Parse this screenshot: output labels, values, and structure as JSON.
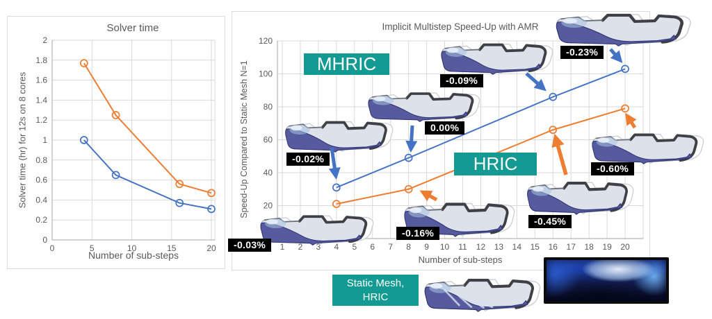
{
  "figure": {
    "background": "#FFFFFF"
  },
  "colors": {
    "mhric_blue": "#4472C4",
    "hric_orange": "#ED7D31",
    "teal_label_bg": "#139B93",
    "annotation_bg": "#000000",
    "annotation_fg": "#FFFFFF",
    "grid": "#D9D9D9",
    "axis": "#A6A6A6",
    "axis_text": "#595959"
  },
  "labels": {
    "mhric": "MHRIC",
    "hric": "HRIC",
    "static_mesh_line1": "Static Mesh,",
    "static_mesh_line2": "HRIC"
  },
  "chart_data": [
    {
      "type": "line",
      "title": "Solver time",
      "xlabel": "Number of sub-steps",
      "ylabel": "Solver time (hr) for 12s on 8 cores",
      "x": [
        4,
        8,
        16,
        20
      ],
      "series": [
        {
          "name": "MHRIC",
          "color": "#4472C4",
          "values": [
            1.0,
            0.65,
            0.37,
            0.31
          ]
        },
        {
          "name": "HRIC",
          "color": "#ED7D31",
          "values": [
            1.77,
            1.25,
            0.56,
            0.47
          ]
        }
      ],
      "xlim": [
        0,
        20
      ],
      "ylim": [
        0,
        2
      ],
      "x_ticks": [
        0,
        5,
        10,
        15,
        20
      ],
      "y_ticks": [
        0,
        0.2,
        0.4,
        0.6,
        0.8,
        1,
        1.2,
        1.4,
        1.6,
        1.8,
        2
      ],
      "grid": true,
      "legend": "none",
      "marker": "open-circle"
    },
    {
      "type": "line",
      "title": "Implicit Multistep Speed-Up with AMR",
      "xlabel": "Number of sub-steps",
      "ylabel": "Speed-Up Compared to Static Mesh N=1",
      "x": [
        4,
        8,
        16,
        20
      ],
      "series": [
        {
          "name": "MHRIC",
          "color": "#4472C4",
          "values": [
            31,
            49,
            86,
            103
          ]
        },
        {
          "name": "HRIC",
          "color": "#ED7D31",
          "values": [
            21,
            30,
            66,
            79
          ]
        }
      ],
      "xlim": [
        0.7,
        21
      ],
      "ylim": [
        0,
        120
      ],
      "x_ticks": [
        1,
        2,
        3,
        4,
        5,
        6,
        7,
        8,
        9,
        10,
        11,
        12,
        13,
        14,
        15,
        16,
        17,
        18,
        19,
        20
      ],
      "y_ticks": [
        20,
        40,
        60,
        80,
        100,
        120
      ],
      "grid": true,
      "legend": "none",
      "marker": "open-circle",
      "annotations": [
        {
          "text": "-0.23%"
        },
        {
          "text": "-0.09%"
        },
        {
          "text": "0.00%"
        },
        {
          "text": "-0.02%"
        },
        {
          "text": "-0.03%"
        },
        {
          "text": "-0.16%"
        },
        {
          "text": "-0.45%"
        },
        {
          "text": "-0.60%"
        }
      ]
    }
  ]
}
